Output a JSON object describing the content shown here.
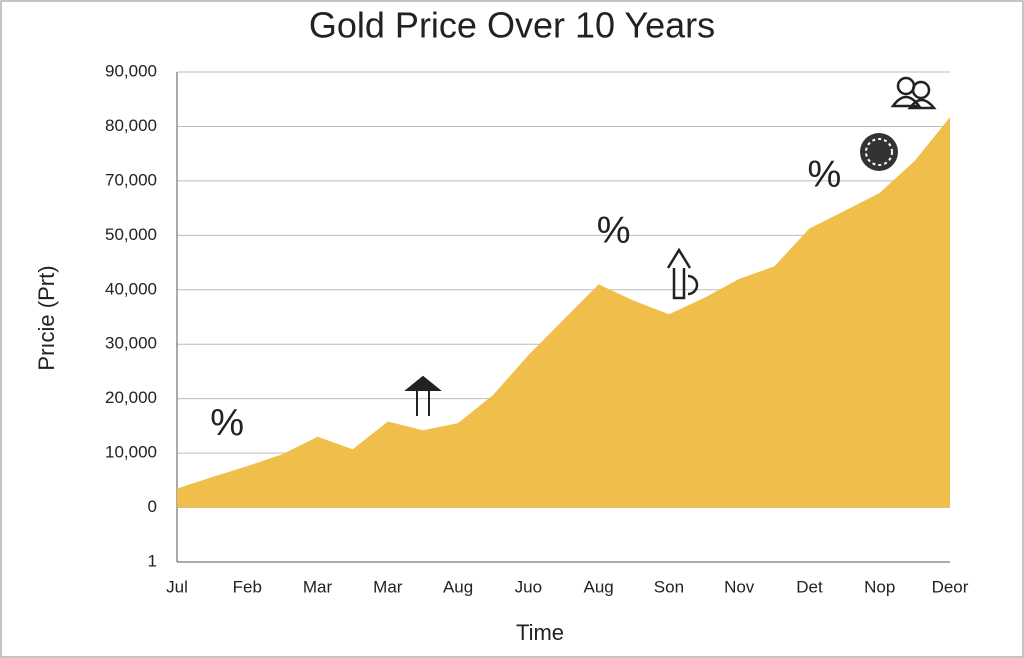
{
  "chart_data": {
    "type": "area",
    "title": "Gold Price Over 10 Years",
    "x_label": "Time",
    "y_label": "Prıcie (Prt)",
    "categories": [
      "Jul",
      null,
      "Feb",
      null,
      "Mar",
      null,
      "Mar",
      null,
      "Aug",
      null,
      "Juo",
      null,
      "Aug",
      null,
      "Son",
      null,
      "Nov",
      null,
      "Det",
      null,
      "Nop",
      null,
      "Deor"
    ],
    "values": [
      3500,
      5600,
      7600,
      9800,
      13000,
      10700,
      15800,
      14200,
      15500,
      20700,
      28000,
      34500,
      41000,
      38000,
      35500,
      38500,
      42000,
      44300,
      52500,
      59000,
      65600,
      73700,
      81700
    ],
    "color": "#f0be4a",
    "yticks": [
      {
        "value": 1,
        "label": "1"
      },
      0,
      {
        "value": 10000,
        "label": "10,000"
      },
      {
        "value": 20000,
        "label": "20,000"
      },
      {
        "value": 30000,
        "label": "30,000"
      },
      {
        "value": 40000,
        "label": "40,000"
      },
      {
        "value": 50000,
        "label": "50,000"
      },
      {
        "value": 70000,
        "label": "70,000"
      },
      {
        "value": 80000,
        "label": "80,000"
      },
      {
        "value": 90000,
        "label": "90,000"
      }
    ],
    "grid": true,
    "annotations": [
      {
        "text": "%",
        "category": 1
      },
      {
        "text": "%",
        "category": 12
      },
      {
        "text": "%",
        "category": 18
      }
    ]
  }
}
